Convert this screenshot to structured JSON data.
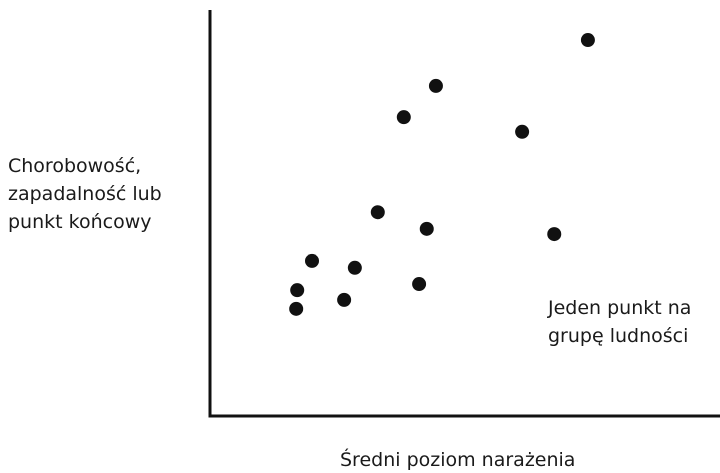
{
  "chart_data": {
    "type": "scatter",
    "x_label": "Średni poziom narażenia",
    "y_label": [
      "Chorobowość,",
      "zapadalność lub",
      "punkt końcowy"
    ],
    "annotation": [
      "Jeden punkt na",
      "grupę ludności"
    ],
    "color": "#111111",
    "xlim": [
      0,
      100
    ],
    "ylim": [
      0,
      100
    ],
    "x": [
      74.1,
      44.3,
      38.0,
      61.2,
      32.9,
      42.5,
      67.5,
      20.0,
      28.4,
      17.1,
      41.0,
      26.3,
      16.9
    ],
    "values": [
      92.6,
      81.3,
      73.6,
      70.0,
      50.2,
      46.1,
      44.8,
      38.2,
      36.5,
      31.0,
      32.5,
      28.6,
      26.4
    ]
  }
}
